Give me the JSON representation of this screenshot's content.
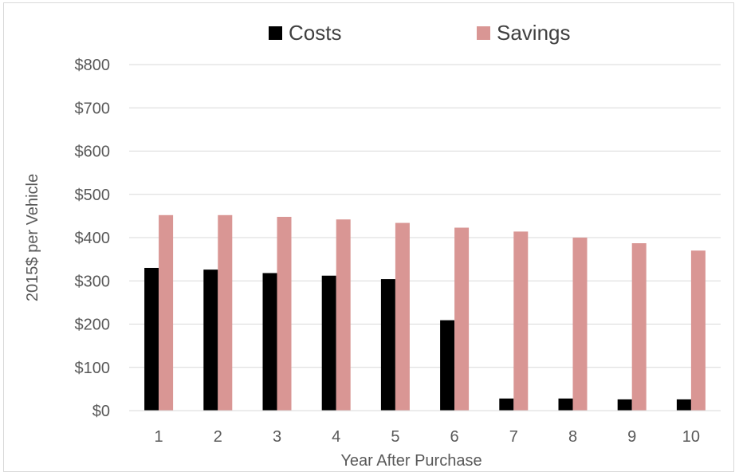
{
  "chart_data": {
    "type": "bar",
    "title": "",
    "xlabel": "Year After Purchase",
    "ylabel": "2015$ per Vehicle",
    "categories": [
      "1",
      "2",
      "3",
      "4",
      "5",
      "6",
      "7",
      "8",
      "9",
      "10"
    ],
    "series": [
      {
        "name": "Costs",
        "color": "#000000",
        "values": [
          330,
          326,
          318,
          312,
          304,
          209,
          28,
          28,
          26,
          26
        ]
      },
      {
        "name": "Savings",
        "color": "#d99694",
        "values": [
          452,
          452,
          448,
          442,
          434,
          423,
          414,
          400,
          387,
          370
        ]
      }
    ],
    "ylim": [
      0,
      800
    ],
    "yticks": [
      0,
      100,
      200,
      300,
      400,
      500,
      600,
      700,
      800
    ],
    "ytick_labels": [
      "$0",
      "$100",
      "$200",
      "$300",
      "$400",
      "$500",
      "$600",
      "$700",
      "$800"
    ],
    "grid": true,
    "legend_position": "top"
  }
}
